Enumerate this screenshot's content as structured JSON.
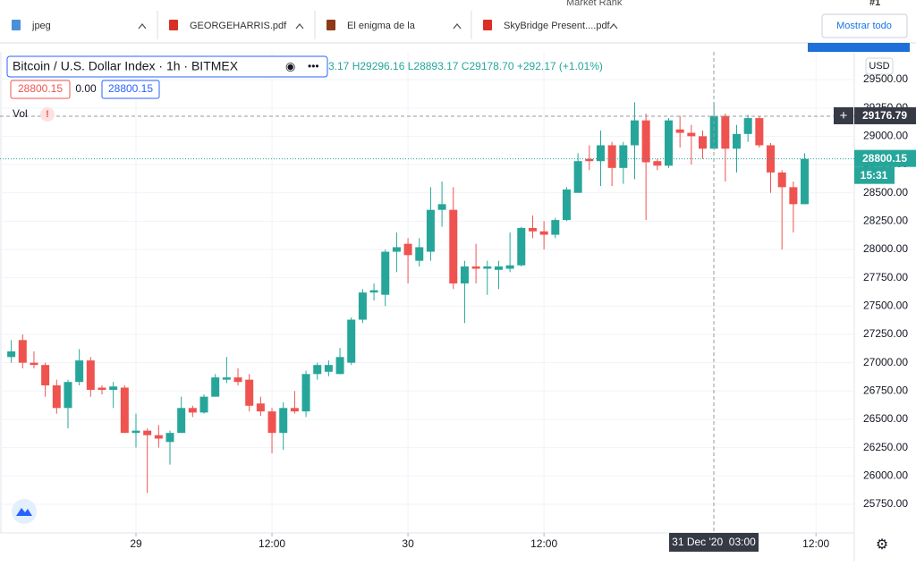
{
  "top_fragment": [
    "Market Rank",
    "#1"
  ],
  "downloads": [
    "jpeg",
    "GEORGEHARRIS.pdf",
    "El enigma de la",
    "SkyBridge Present....pdf"
  ],
  "show_all": "Mostrar todo",
  "chart_data": {
    "type": "candlestick",
    "title": "Bitcoin / U.S. Dollar Index · 1h · BITMEX",
    "ohlc_readout": "3.17 H29296.16 L28893.17 C29178.70 +292.17 (+1.01%)",
    "quote_boxes": [
      "28800.15",
      "0.00",
      "28800.15"
    ],
    "volume_label": "Vol",
    "currency": "USD",
    "countdown": "15:31",
    "up_color": "#26a69a",
    "down_color": "#ef5350",
    "grid": true,
    "open": [
      27050,
      27200,
      27000,
      26980,
      26800,
      26600,
      26830,
      27020,
      26780,
      26760,
      26780,
      26380,
      26400,
      26360,
      26300,
      26380,
      26600,
      26560,
      26700,
      26850,
      26870,
      26850,
      26640,
      26570,
      26380,
      26600,
      26570,
      26900,
      26920,
      26900,
      27000,
      27380,
      27620,
      27600,
      27980,
      28050,
      27900,
      27980,
      28350,
      28350,
      27700,
      27850,
      27830,
      27820,
      27830,
      27860,
      28190,
      28160,
      28130,
      28260,
      28500,
      28800,
      28780,
      28920,
      28720,
      28920,
      29140,
      28780,
      28740,
      29060,
      29030,
      29000,
      28890,
      29180,
      28890,
      29020,
      29160,
      28920,
      28680,
      28550,
      28400
    ],
    "high": [
      27200,
      27250,
      27100,
      27000,
      26850,
      26850,
      27120,
      27050,
      26800,
      26830,
      26800,
      26550,
      26420,
      26450,
      26400,
      26700,
      26620,
      26720,
      26900,
      27050,
      26950,
      26900,
      26700,
      26600,
      26650,
      26750,
      26930,
      27000,
      27020,
      27130,
      27400,
      27650,
      27700,
      28000,
      28150,
      28100,
      28100,
      28550,
      28600,
      28550,
      27900,
      28050,
      27900,
      27900,
      28150,
      28200,
      28300,
      28250,
      28280,
      28550,
      28850,
      28920,
      29050,
      28950,
      28950,
      29300,
      29200,
      28800,
      29160,
      29180,
      29100,
      29050,
      29300,
      29200,
      29100,
      29190,
      29180,
      28940,
      28700,
      28600,
      28850
    ],
    "low": [
      27000,
      26950,
      26950,
      26700,
      26550,
      26420,
      26800,
      26700,
      26720,
      26600,
      26380,
      26250,
      25850,
      26250,
      26100,
      26380,
      26520,
      26550,
      26700,
      26820,
      26800,
      26570,
      26530,
      26200,
      26230,
      26550,
      26520,
      26850,
      26880,
      26900,
      26980,
      27350,
      27550,
      27500,
      27800,
      27700,
      27850,
      27900,
      28200,
      27650,
      27350,
      27700,
      27600,
      27650,
      27800,
      27850,
      28100,
      28000,
      28100,
      28250,
      28500,
      28700,
      28560,
      28560,
      28580,
      28620,
      28260,
      28700,
      28720,
      28900,
      28750,
      28800,
      28880,
      28600,
      28680,
      28950,
      28900,
      28500,
      28000,
      28150,
      28400
    ],
    "close": [
      27100,
      27000,
      26980,
      26800,
      26600,
      26830,
      27020,
      26760,
      26760,
      26790,
      26380,
      26400,
      26360,
      26330,
      26380,
      26600,
      26560,
      26700,
      26870,
      26870,
      26830,
      26620,
      26570,
      26380,
      26600,
      26570,
      26900,
      26980,
      26980,
      27050,
      27380,
      27620,
      27640,
      27980,
      28020,
      27950,
      28020,
      28350,
      28400,
      27700,
      27850,
      27830,
      27850,
      27850,
      27860,
      28190,
      28160,
      28130,
      28260,
      28530,
      28780,
      28780,
      28920,
      28720,
      28920,
      29140,
      28770,
      28740,
      29140,
      29030,
      29000,
      28890,
      29180,
      28890,
      29020,
      29160,
      28920,
      28680,
      28550,
      28400,
      28800.15
    ],
    "xticks": [
      {
        "value": 11,
        "label": "29"
      },
      {
        "value": 23,
        "label": "12:00"
      },
      {
        "value": 35,
        "label": "30"
      },
      {
        "value": 47,
        "label": "12:00"
      },
      {
        "value": 71,
        "label": "12:00"
      }
    ],
    "ylim": [
      25497,
      29745
    ],
    "yticks": [
      {
        "value": 25750,
        "label": "25750.00"
      },
      {
        "value": 26000,
        "label": "26000.00"
      },
      {
        "value": 26250,
        "label": "26250.00"
      },
      {
        "value": 26500,
        "label": "26500.00"
      },
      {
        "value": 26750,
        "label": "26750.00"
      },
      {
        "value": 27000,
        "label": "27000.00"
      },
      {
        "value": 27250,
        "label": "27250.00"
      },
      {
        "value": 27500,
        "label": "27500.00"
      },
      {
        "value": 27750,
        "label": "27750.00"
      },
      {
        "value": 28000,
        "label": "28000.00"
      },
      {
        "value": 28250,
        "label": "28250.00"
      },
      {
        "value": 28500,
        "label": "28500.00"
      },
      {
        "value": 28750,
        "label": "28750.00"
      },
      {
        "value": 29000,
        "label": "29000.00"
      },
      {
        "value": 29250,
        "label": "29250.00"
      },
      {
        "value": 29500,
        "label": "29500.00"
      }
    ],
    "last_price": {
      "value": 28800.15,
      "label": "28800.15"
    },
    "crosshair_price": {
      "value": 29176.79,
      "label": "29176.79"
    },
    "crosshair_time": "31 Dec '20  03:00"
  }
}
